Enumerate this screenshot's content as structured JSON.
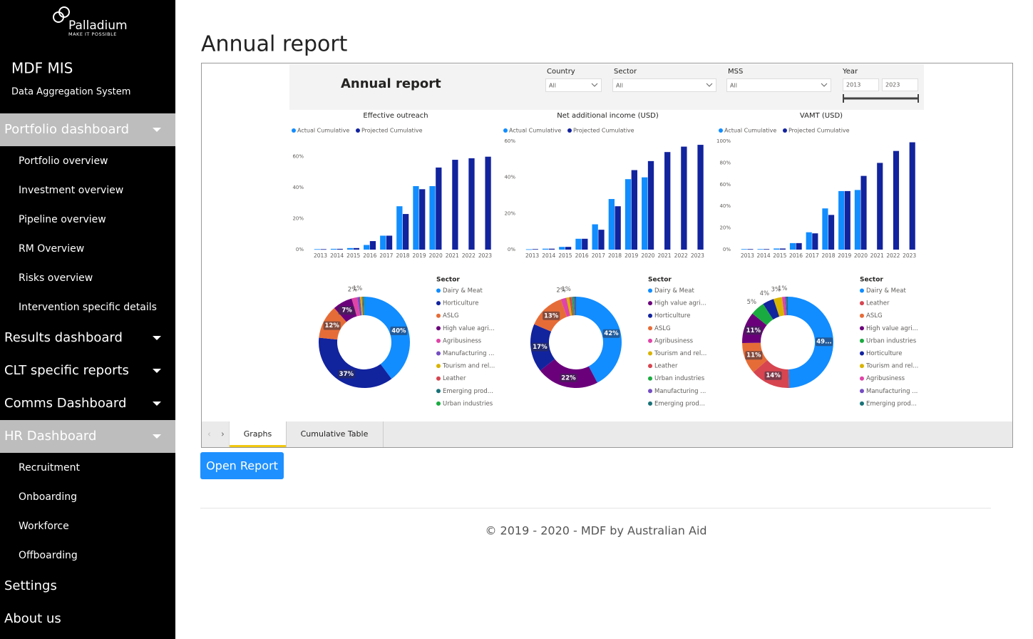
{
  "sidebar": {
    "logo": {
      "name": "Palladium",
      "tagline": "MAKE IT POSSIBLE"
    },
    "app_title": "MDF MIS",
    "app_subtitle": "Data Aggregation System",
    "nav": [
      {
        "label": "Portfolio dashboard",
        "active": true,
        "expandable": true,
        "children": [
          "Portfolio overview",
          "Investment overview",
          "Pipeline overview",
          "RM Overview",
          "Risks overview",
          "Intervention specific details"
        ]
      },
      {
        "label": "Results dashboard",
        "active": false,
        "expandable": true,
        "children": []
      },
      {
        "label": "CLT specific reports",
        "active": false,
        "expandable": true,
        "children": []
      },
      {
        "label": "Comms Dashboard",
        "active": false,
        "expandable": true,
        "children": []
      },
      {
        "label": "HR Dashboard",
        "active": true,
        "expandable": true,
        "children": [
          "Recruitment",
          "Onboarding",
          "Workforce",
          "Offboarding"
        ]
      },
      {
        "label": "Settings",
        "active": false,
        "expandable": false,
        "children": []
      },
      {
        "label": "About us",
        "active": false,
        "expandable": false,
        "children": []
      }
    ]
  },
  "main": {
    "title": "Annual report",
    "report": {
      "title": "Annual report",
      "filters": [
        {
          "label": "Country",
          "value": "All"
        },
        {
          "label": "Sector",
          "value": "All"
        },
        {
          "label": "MSS",
          "value": "All"
        }
      ],
      "year": {
        "label": "Year",
        "from": "2013",
        "to": "2023"
      },
      "tabs": [
        {
          "label": "Graphs",
          "active": true
        },
        {
          "label": "Cumulative Table",
          "active": false
        }
      ]
    },
    "button": "Open Report",
    "footer": "© 2019 - 2020 - MDF by Australian Aid"
  },
  "chart_data": [
    {
      "type": "bar",
      "title": "Effective outreach",
      "categories": [
        "2013",
        "2014",
        "2015",
        "2016",
        "2017",
        "2018",
        "2019",
        "2020",
        "2021",
        "2022",
        "2023"
      ],
      "series": [
        {
          "name": "Actual Cumulative",
          "color": "#118dff",
          "values": [
            0.3,
            0.5,
            1,
            3,
            9,
            28,
            41,
            41,
            null,
            null,
            null
          ]
        },
        {
          "name": "Projected Cumulative",
          "color": "#12239e",
          "values": [
            0.3,
            0.5,
            1,
            5.5,
            9,
            23,
            39,
            53,
            58,
            59,
            60
          ]
        }
      ],
      "ylim": [
        0,
        70
      ],
      "yticks": [
        {
          "value": 0,
          "label": "0%"
        },
        {
          "value": 20,
          "label": "20%"
        },
        {
          "value": 40,
          "label": "40%"
        },
        {
          "value": 60,
          "label": "60%"
        }
      ]
    },
    {
      "type": "bar",
      "title": "Net additional income (USD)",
      "categories": [
        "2013",
        "2014",
        "2015",
        "2016",
        "2017",
        "2018",
        "2019",
        "2020",
        "2021",
        "2022",
        "2023"
      ],
      "series": [
        {
          "name": "Actual Cumulative",
          "color": "#118dff",
          "values": [
            0.2,
            0.5,
            1.5,
            6,
            14,
            28,
            39,
            40,
            null,
            null,
            null
          ]
        },
        {
          "name": "Projected Cumulative",
          "color": "#12239e",
          "values": [
            0.3,
            0.5,
            1.5,
            6,
            11,
            24,
            44,
            49,
            54,
            57,
            58
          ]
        }
      ],
      "ylim": [
        0,
        60
      ],
      "yticks": [
        {
          "value": 0,
          "label": "0%"
        },
        {
          "value": 20,
          "label": "20%"
        },
        {
          "value": 40,
          "label": "40%"
        },
        {
          "value": 60,
          "label": "60%"
        }
      ]
    },
    {
      "type": "bar",
      "title": "VAMT (USD)",
      "categories": [
        "2013",
        "2014",
        "2015",
        "2016",
        "2017",
        "2018",
        "2019",
        "2020",
        "2021",
        "2022",
        "2023"
      ],
      "series": [
        {
          "name": "Actual Cumulative",
          "color": "#118dff",
          "values": [
            0.5,
            0.5,
            1,
            6,
            16,
            38,
            54,
            55,
            null,
            null,
            null
          ]
        },
        {
          "name": "Projected Cumulative",
          "color": "#12239e",
          "values": [
            0.5,
            0.5,
            1,
            6,
            15,
            32,
            54,
            68,
            80,
            91,
            99
          ]
        }
      ],
      "ylim": [
        0,
        100
      ],
      "yticks": [
        {
          "value": 0,
          "label": "0%"
        },
        {
          "value": 20,
          "label": "20%"
        },
        {
          "value": 40,
          "label": "40%"
        },
        {
          "value": 60,
          "label": "60%"
        },
        {
          "value": 80,
          "label": "80%"
        },
        {
          "value": 100,
          "label": "100%"
        }
      ]
    },
    {
      "type": "donut",
      "legend_title": "Sector",
      "categories": [
        "Dairy & Meat",
        "Horticulture",
        "ASLG",
        "High value agri...",
        "Agribusiness",
        "Manufacturing ...",
        "Tourism and rel...",
        "Leather",
        "Emerging prod...",
        "Urban industries"
      ],
      "colors": [
        "#118dff",
        "#12239e",
        "#e66c37",
        "#6b007b",
        "#e044a7",
        "#744ec2",
        "#d9b300",
        "#d64550",
        "#197278",
        "#1aab40"
      ],
      "values": [
        40,
        37,
        12,
        7,
        2,
        1,
        0.6,
        0.3,
        0.3,
        0.3
      ],
      "value_labels": [
        "40%",
        "37%",
        "12%",
        "7%",
        "2%",
        "1%",
        null,
        null,
        null,
        null
      ]
    },
    {
      "type": "donut",
      "legend_title": "Sector",
      "categories": [
        "Dairy & Meat",
        "High value agri...",
        "Horticulture",
        "ASLG",
        "Agribusiness",
        "Tourism and rel...",
        "Leather",
        "Urban industries",
        "Manufacturing ...",
        "Emerging prod..."
      ],
      "colors": [
        "#118dff",
        "#6b007b",
        "#12239e",
        "#e66c37",
        "#e044a7",
        "#d9b300",
        "#d64550",
        "#1aab40",
        "#744ec2",
        "#197278"
      ],
      "values": [
        42,
        22,
        17,
        13,
        2,
        1,
        0.8,
        0.6,
        0.5,
        0.5
      ],
      "value_labels": [
        "42%",
        "22%",
        "17%",
        "13%",
        "2%",
        "1%",
        null,
        null,
        null,
        null
      ]
    },
    {
      "type": "donut",
      "legend_title": "Sector",
      "categories": [
        "Dairy & Meat",
        "Leather",
        "ASLG",
        "High value agri...",
        "Urban industries",
        "Horticulture",
        "Tourism and rel...",
        "Agribusiness",
        "Manufacturing ...",
        "Emerging prod..."
      ],
      "colors": [
        "#118dff",
        "#d64550",
        "#e66c37",
        "#6b007b",
        "#1aab40",
        "#12239e",
        "#d9b300",
        "#e044a7",
        "#744ec2",
        "#197278"
      ],
      "values": [
        49,
        14,
        11,
        11,
        5,
        4,
        3,
        1,
        0.5,
        0.5
      ],
      "value_labels": [
        "49...",
        "14%",
        "11%",
        "11%",
        "5%",
        "4%",
        "3%",
        "1%",
        null,
        null
      ]
    }
  ]
}
